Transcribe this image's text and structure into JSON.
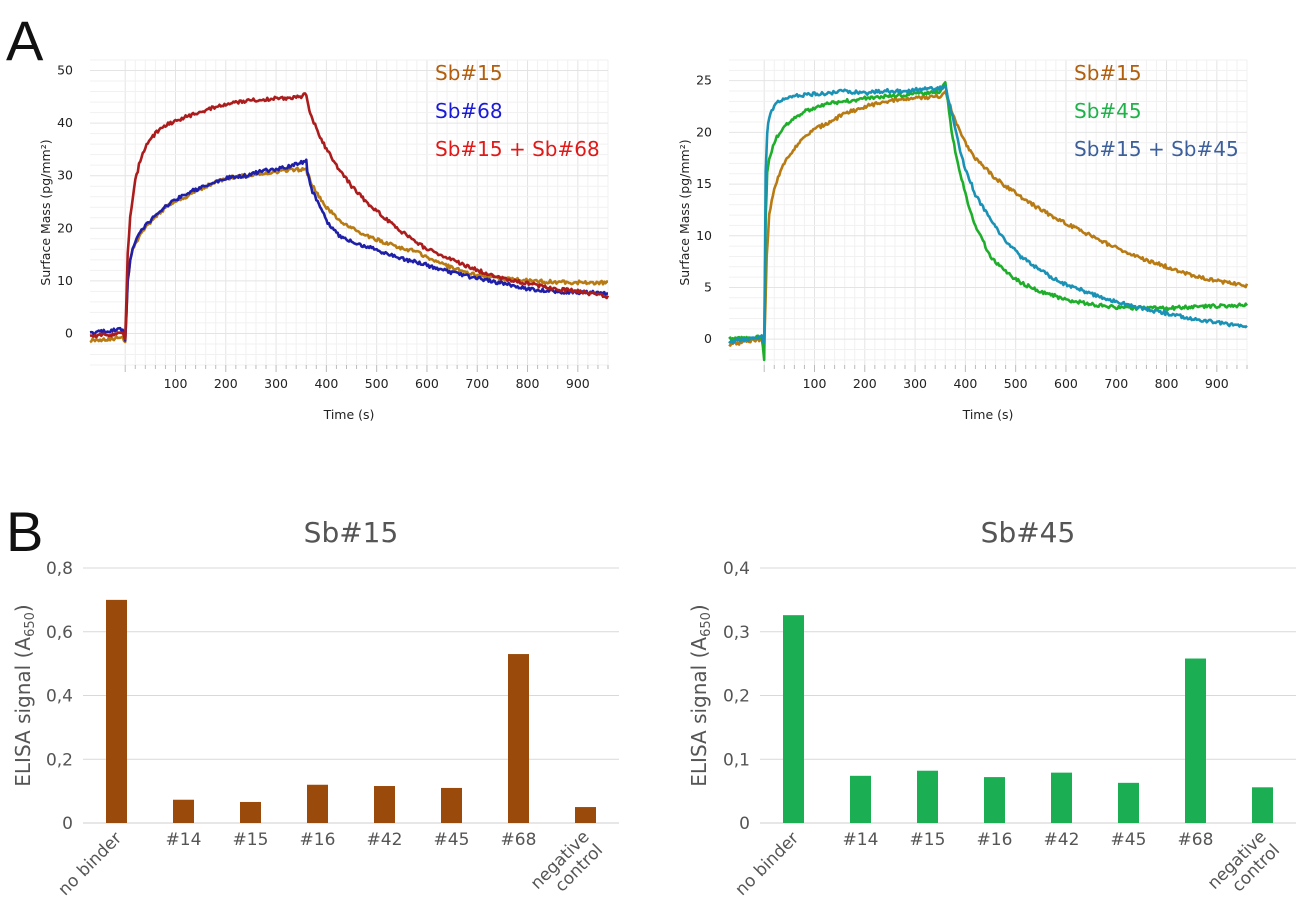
{
  "panels": {
    "a_label": "A",
    "b_label": "B"
  },
  "chart_data": [
    {
      "type": "line",
      "panel": "A-left",
      "xlabel": "Time (s)",
      "ylabel": "Surface Mass (pg/mm²)",
      "xlim": [
        -70,
        960
      ],
      "ylim": [
        -6,
        52
      ],
      "xticks": [
        100,
        200,
        300,
        400,
        500,
        600,
        700,
        800,
        900
      ],
      "yticks": [
        0,
        10,
        20,
        30,
        40,
        50
      ],
      "grid": true,
      "legend": "top-right",
      "series": [
        {
          "name": "Sb#15",
          "color": "#b87a12",
          "legend_color": "#b25e0c",
          "x": [
            -70,
            -5,
            0,
            5,
            10,
            15,
            20,
            30,
            40,
            50,
            60,
            80,
            100,
            130,
            160,
            200,
            240,
            280,
            320,
            350,
            360,
            362,
            370,
            385,
            400,
            420,
            450,
            480,
            510,
            540,
            560,
            580,
            600,
            650,
            700,
            750,
            800,
            850,
            900,
            960
          ],
          "y": [
            -1.3,
            -0.8,
            -1.5,
            10,
            14,
            16,
            17,
            19,
            20,
            21,
            22,
            24,
            25,
            26.5,
            28,
            29.5,
            30,
            30.5,
            31,
            31.2,
            31.5,
            30.5,
            28.5,
            26,
            24,
            22,
            20,
            18.5,
            17.5,
            16.5,
            16,
            15.5,
            14.5,
            12.5,
            11,
            10.5,
            10,
            9.8,
            9.7,
            9.6
          ]
        },
        {
          "name": "Sb#68",
          "color": "#1f1fa8",
          "legend_color": "#1a1ad6",
          "x": [
            -70,
            -5,
            0,
            5,
            10,
            15,
            20,
            30,
            40,
            50,
            60,
            80,
            100,
            130,
            160,
            200,
            240,
            280,
            320,
            350,
            360,
            362,
            370,
            385,
            400,
            420,
            450,
            480,
            510,
            540,
            560,
            580,
            600,
            650,
            700,
            750,
            800,
            850,
            900,
            960
          ],
          "y": [
            0,
            0.8,
            -1.5,
            10,
            14,
            16,
            17.5,
            19.5,
            20.5,
            21.5,
            22.5,
            24,
            25.5,
            27,
            28,
            29.5,
            30,
            31,
            31.5,
            32.5,
            33,
            30.5,
            27.5,
            24.5,
            21.5,
            19,
            17.5,
            16.5,
            15.5,
            14.5,
            14,
            13.5,
            13,
            11.5,
            10.5,
            9.5,
            8.5,
            8,
            7.8,
            7.7
          ]
        },
        {
          "name": "Sb#15 + Sb#68",
          "color": "#ab1c1c",
          "legend_color": "#e01818",
          "x": [
            -70,
            -5,
            0,
            5,
            10,
            20,
            30,
            40,
            50,
            60,
            80,
            100,
            130,
            160,
            200,
            240,
            280,
            320,
            350,
            360,
            362,
            370,
            380,
            400,
            420,
            450,
            480,
            510,
            540,
            570,
            600,
            650,
            700,
            750,
            800,
            850,
            900,
            960
          ],
          "y": [
            -0.5,
            0,
            -1,
            15,
            22,
            29,
            33,
            35.5,
            37,
            38,
            39.5,
            40.5,
            41.5,
            42.5,
            43.5,
            44.3,
            44.5,
            44.8,
            45,
            45.5,
            44,
            41.5,
            39,
            35,
            32,
            28,
            25,
            22.5,
            20,
            18,
            16,
            14,
            12,
            10.5,
            9.5,
            8.5,
            8,
            7
          ]
        }
      ]
    },
    {
      "type": "line",
      "panel": "A-right",
      "xlabel": "Time (s)",
      "ylabel": "Surface Mass (pg/mm²)",
      "xlim": [
        -70,
        960
      ],
      "ylim": [
        -2.5,
        27
      ],
      "xticks": [
        100,
        200,
        300,
        400,
        500,
        600,
        700,
        800,
        900
      ],
      "yticks": [
        0,
        5,
        10,
        15,
        20,
        25
      ],
      "grid": true,
      "legend": "top-right",
      "series": [
        {
          "name": "Sb#15",
          "color": "#b87a12",
          "legend_color": "#b25e0c",
          "x": [
            -70,
            -5,
            0,
            5,
            10,
            20,
            30,
            40,
            60,
            80,
            100,
            130,
            160,
            200,
            240,
            280,
            320,
            350,
            360,
            370,
            385,
            400,
            420,
            450,
            480,
            510,
            540,
            570,
            600,
            650,
            700,
            750,
            800,
            850,
            900,
            960
          ],
          "y": [
            -0.5,
            0,
            -1,
            8,
            12,
            14.5,
            16,
            17,
            18.5,
            19.5,
            20.3,
            21,
            21.8,
            22.5,
            23,
            23.2,
            23.4,
            23.5,
            24,
            22.5,
            20.5,
            19,
            17.5,
            16,
            14.8,
            13.8,
            12.8,
            12,
            11.2,
            10,
            8.8,
            7.8,
            7,
            6.2,
            5.6,
            5.2
          ]
        },
        {
          "name": "Sb#45",
          "color": "#1fae2b",
          "legend_color": "#1fb24a",
          "x": [
            -70,
            -5,
            0,
            3,
            6,
            10,
            20,
            30,
            40,
            60,
            80,
            100,
            130,
            160,
            200,
            240,
            280,
            320,
            350,
            360,
            365,
            370,
            380,
            400,
            420,
            450,
            480,
            510,
            540,
            570,
            600,
            650,
            700,
            750,
            800,
            850,
            900,
            960
          ],
          "y": [
            0,
            0.2,
            -2,
            12,
            16,
            17.5,
            19,
            20,
            20.5,
            21.5,
            22,
            22.3,
            22.8,
            23,
            23.3,
            23.5,
            23.6,
            23.8,
            24,
            25,
            23,
            21,
            18,
            14,
            11,
            8,
            6.5,
            5.5,
            4.8,
            4.3,
            3.8,
            3.4,
            3.1,
            3,
            3,
            3.1,
            3.2,
            3.3
          ]
        },
        {
          "name": "Sb#15 + Sb#45",
          "color": "#1a92b5",
          "legend_color": "#3c5f9c",
          "x": [
            -70,
            -5,
            0,
            3,
            6,
            10,
            20,
            30,
            40,
            60,
            80,
            100,
            130,
            160,
            200,
            240,
            280,
            320,
            350,
            360,
            365,
            375,
            390,
            400,
            420,
            450,
            480,
            510,
            540,
            570,
            600,
            650,
            700,
            750,
            800,
            850,
            900,
            960
          ],
          "y": [
            -0.3,
            0.2,
            -0.5,
            16,
            20,
            21.5,
            22.5,
            23,
            23.2,
            23.5,
            23.6,
            23.7,
            23.8,
            24,
            23.8,
            24,
            24,
            24.2,
            24.3,
            24.5,
            23.5,
            21.5,
            18,
            16.5,
            14,
            11.5,
            9.5,
            8,
            7,
            6,
            5.3,
            4.4,
            3.6,
            3,
            2.5,
            2,
            1.6,
            1.2
          ]
        }
      ]
    },
    {
      "type": "bar",
      "panel": "B-left",
      "title": "Sb#15",
      "ylabel": "ELISA signal (A650)",
      "ylabel_parts": {
        "main": "ELISA signal (A",
        "sub": "650",
        "close": ")"
      },
      "ylim": [
        0,
        0.8
      ],
      "yticks": [
        "0",
        "0,2",
        "0,4",
        "0,6",
        "0,8"
      ],
      "color": "#9a4a0a",
      "categories": [
        [
          "no binder"
        ],
        [
          "#14"
        ],
        [
          "#15"
        ],
        [
          "#16"
        ],
        [
          "#42"
        ],
        [
          "#45"
        ],
        [
          "#68"
        ],
        [
          "negative",
          "control"
        ]
      ],
      "values": [
        0.7,
        0.073,
        0.066,
        0.12,
        0.116,
        0.11,
        0.53,
        0.05
      ]
    },
    {
      "type": "bar",
      "panel": "B-right",
      "title": "Sb#45",
      "ylabel": "ELISA signal (A650)",
      "ylabel_parts": {
        "main": "ELISA signal (A",
        "sub": "650",
        "close": ")"
      },
      "ylim": [
        0,
        0.4
      ],
      "yticks": [
        "0",
        "0,1",
        "0,2",
        "0,3",
        "0,4"
      ],
      "color": "#1bae53",
      "categories": [
        [
          "no binder"
        ],
        [
          "#14"
        ],
        [
          "#15"
        ],
        [
          "#16"
        ],
        [
          "#42"
        ],
        [
          "#45"
        ],
        [
          "#68"
        ],
        [
          "negative",
          "control"
        ]
      ],
      "values": [
        0.326,
        0.074,
        0.082,
        0.072,
        0.079,
        0.063,
        0.258,
        0.056
      ]
    }
  ]
}
